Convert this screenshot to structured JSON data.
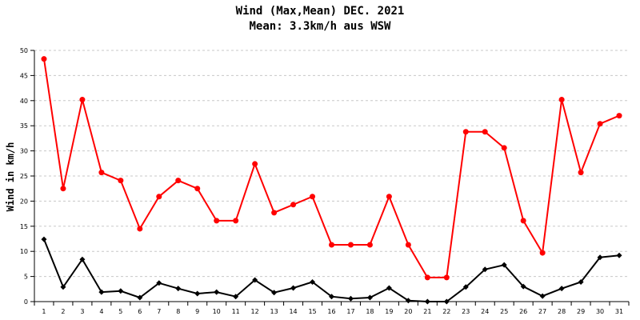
{
  "chart_data": {
    "type": "line",
    "title": "Wind (Max,Mean) DEC. 2021",
    "subtitle": "Mean: 3.3km/h aus WSW",
    "xlabel": "",
    "ylabel": "Wind in km/h",
    "categories": [
      "1",
      "2",
      "3",
      "4",
      "5",
      "6",
      "7",
      "8",
      "9",
      "10",
      "11",
      "12",
      "13",
      "14",
      "15",
      "16",
      "17",
      "18",
      "19",
      "20",
      "21",
      "22",
      "23",
      "24",
      "25",
      "26",
      "27",
      "28",
      "29",
      "30",
      "31"
    ],
    "yticks": [
      "0",
      "5",
      "10",
      "15",
      "20",
      "25",
      "30",
      "35",
      "40",
      "45",
      "50"
    ],
    "ylim": [
      0,
      50
    ],
    "grid": true,
    "legend": "none",
    "series": [
      {
        "color": "#ff0000",
        "marker": "circle",
        "values": [
          48.3,
          22.5,
          40.2,
          25.7,
          24.1,
          14.5,
          20.9,
          24.1,
          22.5,
          16.1,
          16.1,
          27.4,
          17.7,
          19.3,
          20.9,
          11.3,
          11.3,
          11.3,
          20.9,
          11.3,
          4.8,
          4.8,
          33.8,
          33.8,
          30.6,
          16.1,
          9.7,
          40.2,
          25.7,
          35.4,
          37.0
        ]
      },
      {
        "color": "#000000",
        "marker": "diamond",
        "values": [
          12.4,
          2.9,
          8.4,
          1.9,
          2.1,
          0.8,
          3.7,
          2.6,
          1.6,
          1.9,
          1.0,
          4.3,
          1.8,
          2.7,
          3.9,
          1.0,
          0.6,
          0.8,
          2.7,
          0.2,
          0.0,
          0.0,
          2.9,
          6.4,
          7.3,
          3.0,
          1.1,
          2.6,
          3.9,
          8.8,
          9.2
        ]
      }
    ]
  }
}
